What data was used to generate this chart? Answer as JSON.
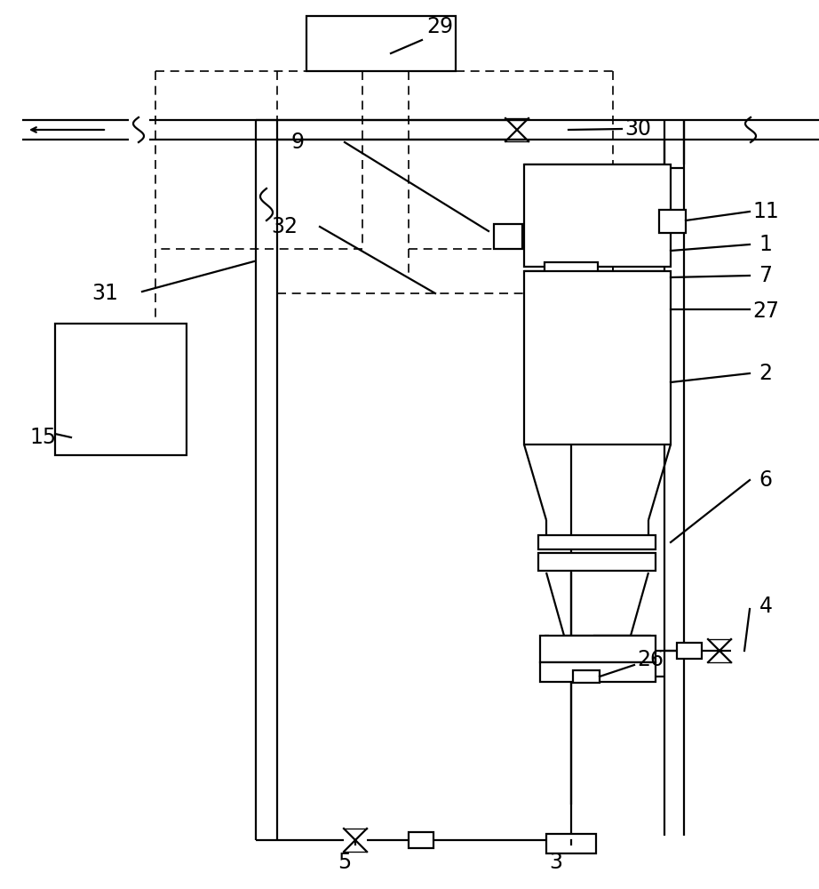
{
  "bg_color": "#ffffff",
  "lc": "#000000",
  "lw": 1.6,
  "dlw": 1.2,
  "fig_w": 9.22,
  "fig_h": 10.0,
  "dpi": 100
}
